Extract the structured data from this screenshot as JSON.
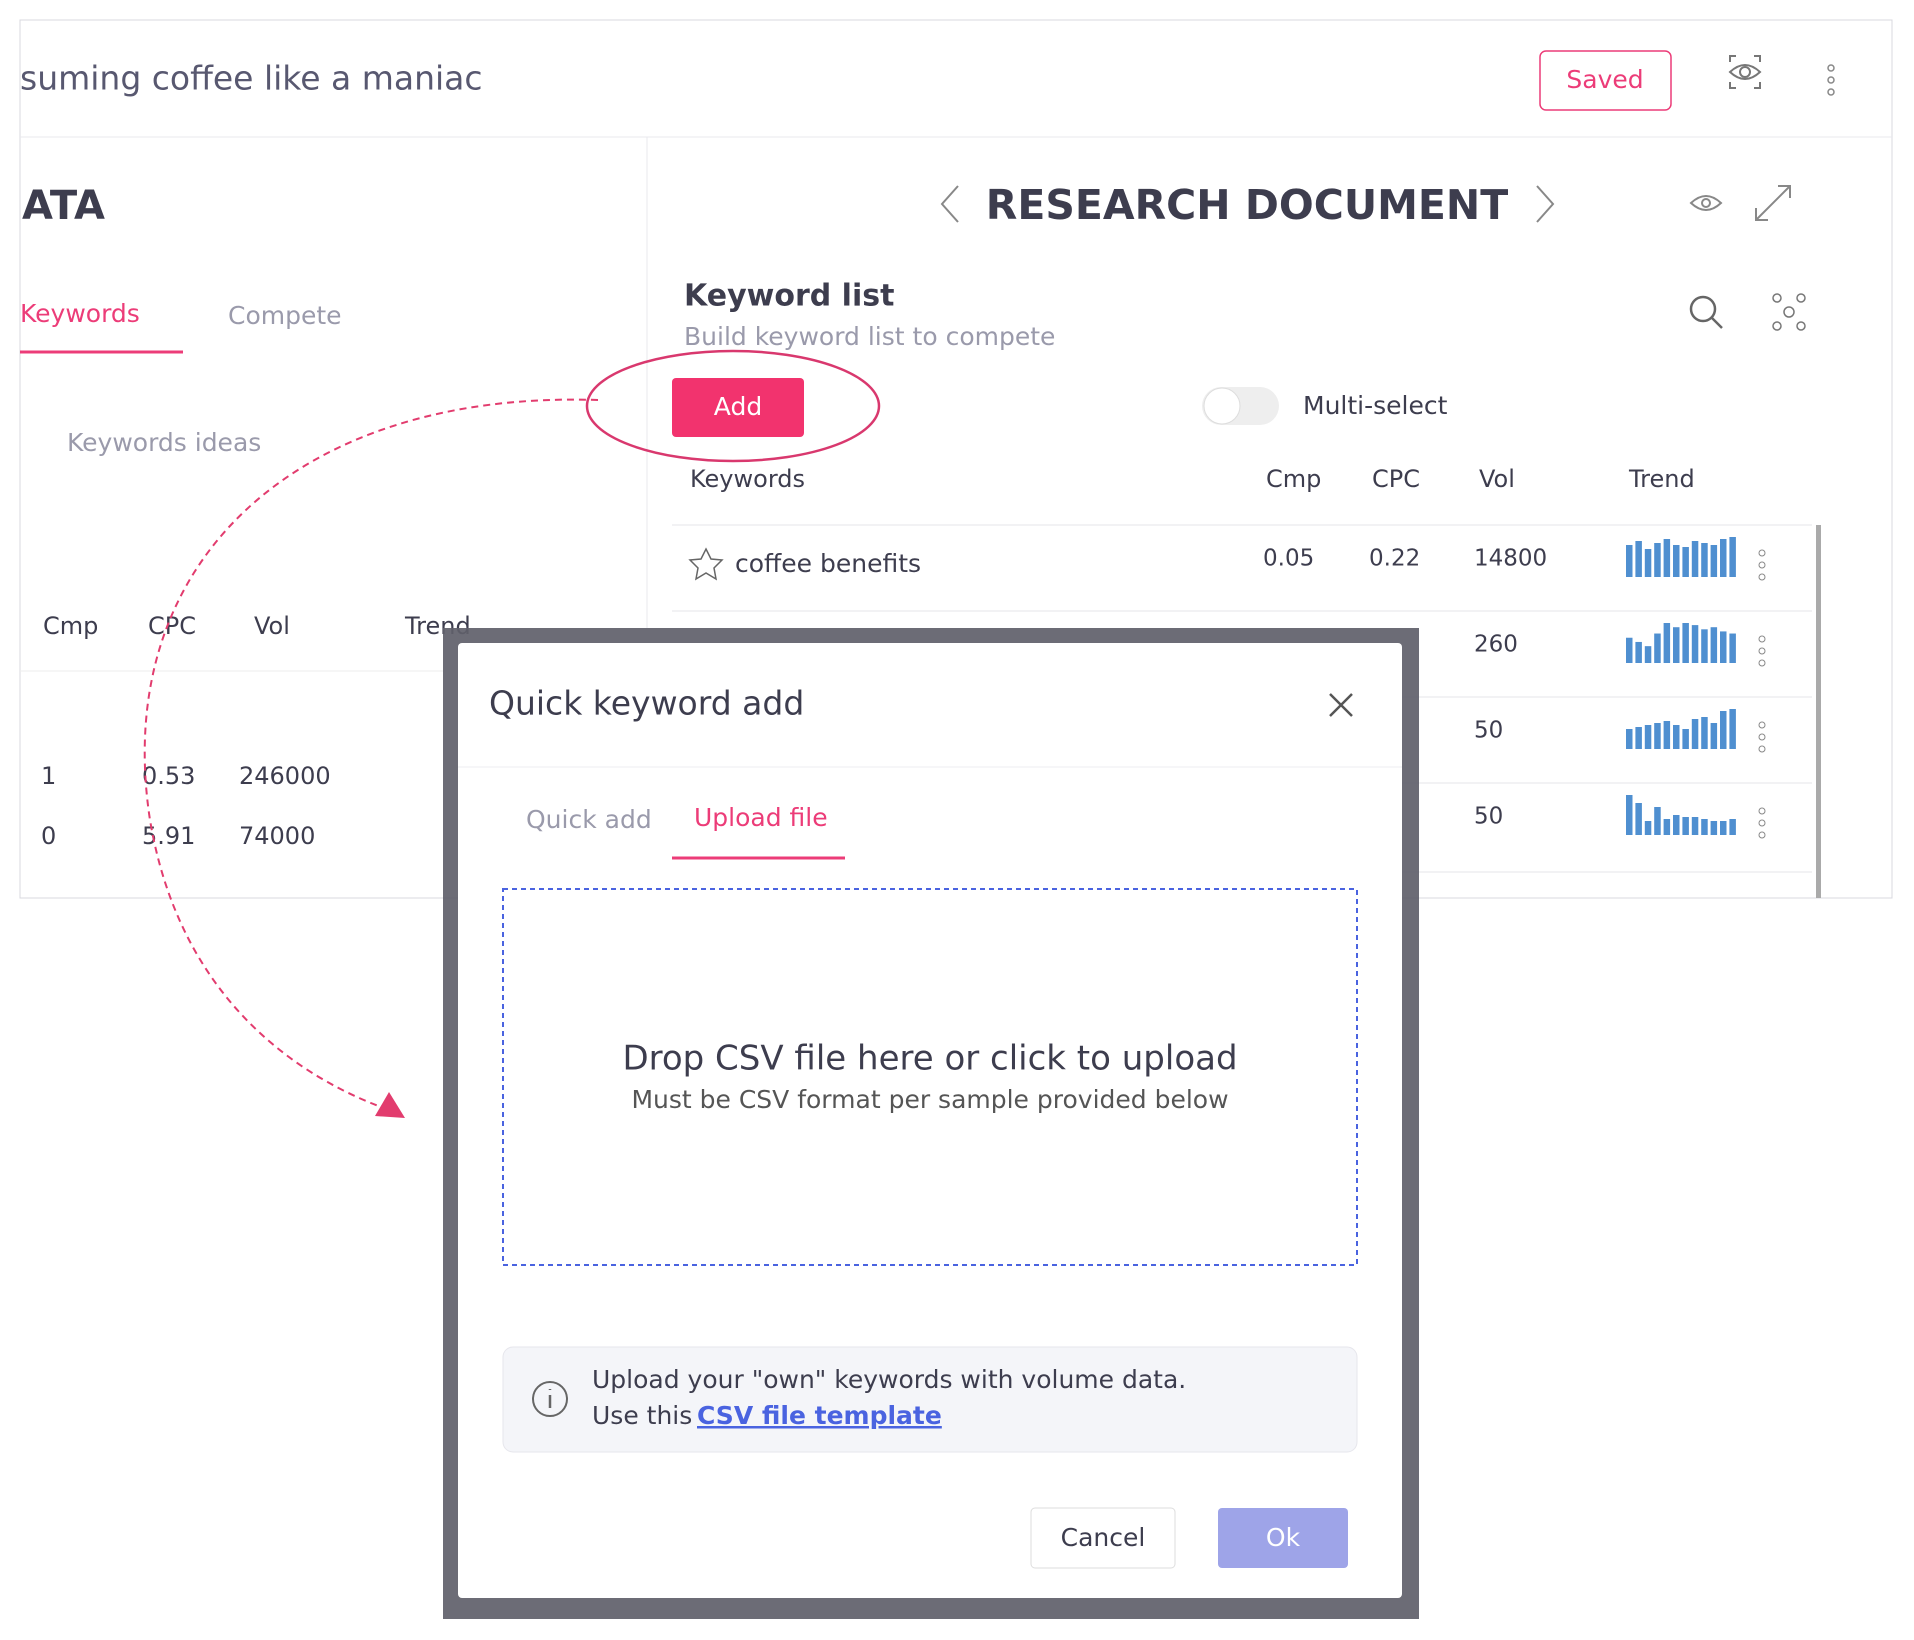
{
  "header": {
    "title": "suming coffee like a maniac",
    "saved": "Saved"
  },
  "left": {
    "heading": "ATA",
    "tabs": [
      "Keywords",
      "Compete"
    ],
    "ideas": "Keywords ideas",
    "columns": [
      "Cmp",
      "CPC",
      "Vol",
      "Trend"
    ],
    "rows": [
      [
        "1",
        "0.53",
        "246000"
      ],
      [
        "0",
        "5.91",
        "74000"
      ]
    ]
  },
  "right": {
    "heading": "RESEARCH DOCUMENT",
    "list_title": "Keyword list",
    "list_subtitle": "Build keyword list to compete",
    "add": "Add",
    "multiselect": "Multi-select",
    "columns": [
      "Keywords",
      "Cmp",
      "CPC",
      "Vol",
      "Trend"
    ],
    "rows": [
      {
        "keyword": "coffee benefits",
        "cmp": "0.05",
        "cpc": "0.22",
        "vol": "14800",
        "trend": [
          80,
          90,
          70,
          85,
          95,
          80,
          75,
          90,
          85,
          80,
          95,
          100
        ]
      },
      {
        "vol": "260",
        "trend": [
          60,
          50,
          40,
          70,
          95,
          85,
          95,
          90,
          80,
          85,
          75,
          70
        ]
      },
      {
        "vol": "50",
        "trend": [
          50,
          55,
          60,
          65,
          70,
          60,
          50,
          75,
          80,
          65,
          95,
          100
        ]
      },
      {
        "vol": "50",
        "trend": [
          100,
          80,
          35,
          70,
          40,
          50,
          45,
          45,
          40,
          35,
          35,
          40
        ]
      }
    ]
  },
  "modal": {
    "title": "Quick keyword add",
    "tabs": [
      "Quick add",
      "Upload file"
    ],
    "drop_title": "Drop CSV file here or click to upload",
    "drop_subtitle": "Must be CSV format per sample provided below",
    "info_line1": "Upload your \"own\" keywords with volume data.",
    "info_prefix": "Use this",
    "info_link": "CSV file template",
    "cancel": "Cancel",
    "ok": "Ok"
  }
}
